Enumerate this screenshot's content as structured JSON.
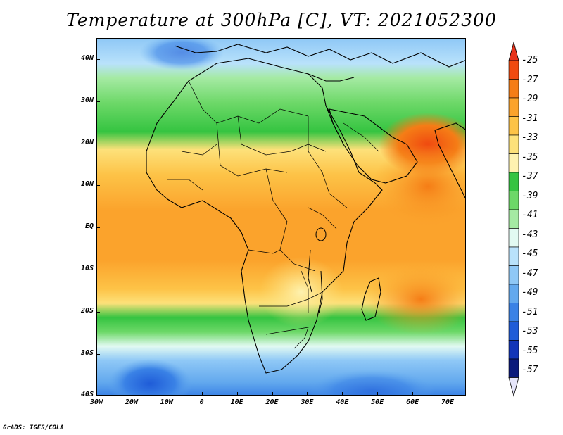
{
  "title": "Temperature at 300hPa [C], VT: 2021052300",
  "credit": "GrADS: IGES/COLA",
  "axes": {
    "lat_labels": [
      "40N",
      "30N",
      "20N",
      "10N",
      "EQ",
      "10S",
      "20S",
      "30S",
      "40S"
    ],
    "lon_labels": [
      "30W",
      "20W",
      "10W",
      "0",
      "10E",
      "20E",
      "30E",
      "40E",
      "50E",
      "60E",
      "70E"
    ]
  },
  "colorbar": {
    "labels": [
      "-25",
      "-27",
      "-29",
      "-31",
      "-33",
      "-35",
      "-37",
      "-39",
      "-41",
      "-43",
      "-45",
      "-47",
      "-49",
      "-51",
      "-53",
      "-55",
      "-57"
    ],
    "colors": [
      "#f04a10",
      "#f57d16",
      "#fba32c",
      "#fdc347",
      "#fde17a",
      "#fef2b0",
      "#35c441",
      "#6dd868",
      "#a5eaa3",
      "#e2faf2",
      "#b9e2fb",
      "#8fc8f6",
      "#63a9ee",
      "#3a82e6",
      "#1f5cd8",
      "#1235b8",
      "#0b1a7c"
    ],
    "top_arrow_color": "#e7331b",
    "bottom_arrow_color": "#e6e6fb"
  }
}
